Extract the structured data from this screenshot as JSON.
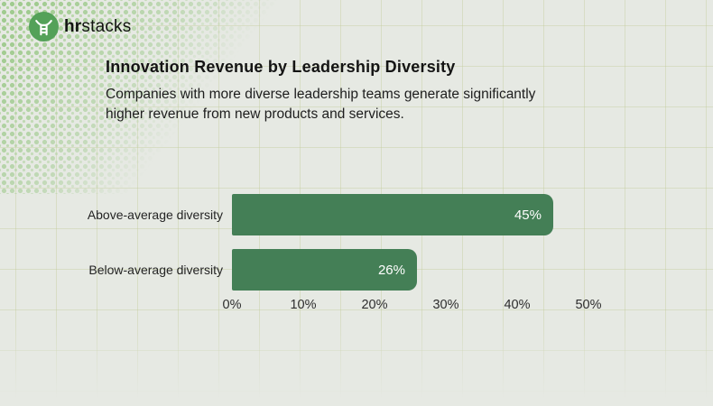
{
  "brand": {
    "name_bold": "hr",
    "name_regular": "stacks",
    "logo_color": "#54a159",
    "logo_icon": "person-ladder-icon"
  },
  "header": {
    "title": "Innovation Revenue by Leadership Diversity",
    "subtitle_line1": "Companies with more diverse leadership teams generate significantly",
    "subtitle_line2": "higher revenue from new products and services."
  },
  "chart_data": {
    "type": "bar",
    "orientation": "horizontal",
    "title": "Innovation Revenue by Leadership Diversity",
    "categories": [
      "Above-average diversity",
      "Below-average diversity"
    ],
    "values": [
      45,
      26
    ],
    "value_labels": [
      "45%",
      "26%"
    ],
    "x_ticks": [
      "0%",
      "10%",
      "20%",
      "30%",
      "40%",
      "50%"
    ],
    "xlim": [
      0,
      50
    ],
    "xlabel": "",
    "ylabel": "",
    "grid": true,
    "legend": "none",
    "bar_color": "#447f56",
    "value_label_color": "#ffffff"
  },
  "colors": {
    "background": "#e6e9e3",
    "grid_line": "#c1ca96",
    "dots": "#9cc98a"
  }
}
